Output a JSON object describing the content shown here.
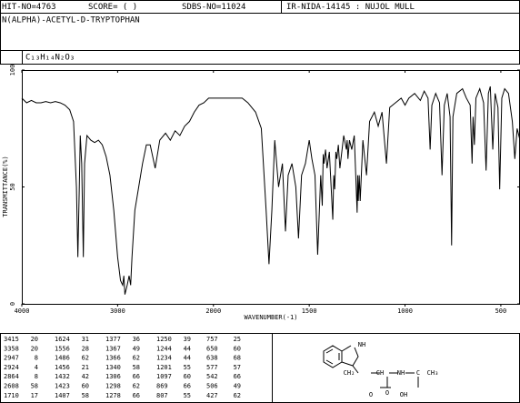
{
  "header": {
    "hit_no": "HIT-NO=4763",
    "score": "SCORE=  (   )",
    "sdbs_no": "SDBS-NO=11024",
    "method": "IR-NIDA-14145 : NUJOL MULL",
    "compound": "N(ALPHA)-ACETYL-D-TRYPTOPHAN",
    "formula": "C₁₃H₁₄N₂O₃"
  },
  "chart_data": {
    "type": "line",
    "ylabel": "TRANSMITTANCE(%)",
    "xlabel": "WAVENUMBER(-1)",
    "xlim": [
      4000,
      400
    ],
    "x_break": 2000,
    "xticks": [
      4000,
      3000,
      2000,
      1500,
      1000,
      500
    ],
    "ylim": [
      0,
      100
    ],
    "yticks": [
      0,
      50,
      100
    ],
    "series": [
      {
        "color": "#000000",
        "x": [
          4000,
          3950,
          3900,
          3850,
          3800,
          3750,
          3700,
          3650,
          3600,
          3550,
          3500,
          3460,
          3430,
          3415,
          3400,
          3390,
          3375,
          3358,
          3345,
          3320,
          3280,
          3240,
          3200,
          3160,
          3120,
          3080,
          3040,
          3000,
          2970,
          2947,
          2935,
          2924,
          2900,
          2880,
          2864,
          2850,
          2820,
          2780,
          2740,
          2700,
          2660,
          2608,
          2560,
          2500,
          2450,
          2400,
          2350,
          2300,
          2250,
          2200,
          2150,
          2100,
          2050,
          2000,
          1950,
          1900,
          1850,
          1820,
          1780,
          1750,
          1725,
          1710,
          1695,
          1680,
          1660,
          1640,
          1624,
          1610,
          1590,
          1570,
          1556,
          1540,
          1520,
          1500,
          1486,
          1470,
          1456,
          1440,
          1432,
          1427,
          1423,
          1415,
          1407,
          1395,
          1377,
          1372,
          1367,
          1361,
          1356,
          1348,
          1340,
          1320,
          1306,
          1302,
          1298,
          1290,
          1278,
          1265,
          1250,
          1247,
          1244,
          1239,
          1234,
          1220,
          1201,
          1185,
          1160,
          1140,
          1120,
          1097,
          1080,
          1050,
          1020,
          1000,
          980,
          950,
          920,
          900,
          880,
          869,
          860,
          840,
          820,
          807,
          795,
          780,
          765,
          757,
          750,
          730,
          700,
          680,
          660,
          650,
          645,
          638,
          630,
          610,
          590,
          577,
          565,
          555,
          542,
          530,
          515,
          506,
          495,
          480,
          460,
          440,
          427,
          415,
          400
        ],
        "values": [
          88,
          86,
          87,
          86,
          86,
          86.5,
          86,
          86.5,
          86,
          85,
          83,
          78,
          50,
          20,
          50,
          72,
          60,
          20,
          60,
          72,
          70,
          69,
          70,
          68,
          63,
          55,
          40,
          20,
          10,
          8,
          12,
          4,
          8,
          12,
          8,
          20,
          40,
          50,
          60,
          68,
          68,
          58,
          70,
          73,
          70,
          74,
          72,
          76,
          78,
          82,
          85,
          86,
          88,
          88,
          88,
          88,
          88,
          86,
          82,
          75,
          40,
          17,
          40,
          70,
          50,
          60,
          31,
          55,
          60,
          50,
          28,
          55,
          60,
          70,
          62,
          55,
          21,
          55,
          42,
          64,
          60,
          66,
          58,
          65,
          36,
          55,
          49,
          65,
          62,
          68,
          58,
          72,
          66,
          70,
          62,
          70,
          66,
          72,
          39,
          55,
          44,
          55,
          44,
          70,
          55,
          78,
          82,
          76,
          82,
          60,
          84,
          86,
          88,
          85,
          88,
          90,
          87,
          91,
          88,
          66,
          85,
          90,
          86,
          55,
          85,
          90,
          80,
          25,
          80,
          90,
          92,
          88,
          85,
          60,
          80,
          68,
          88,
          92,
          86,
          57,
          90,
          93,
          66,
          90,
          84,
          49,
          88,
          92,
          90,
          78,
          62,
          75,
          70
        ]
      }
    ]
  },
  "peaks": [
    [
      3415,
      20
    ],
    [
      3358,
      20
    ],
    [
      2947,
      8
    ],
    [
      2924,
      4
    ],
    [
      2864,
      8
    ],
    [
      2608,
      58
    ],
    [
      1710,
      17
    ],
    [
      1624,
      31
    ],
    [
      1556,
      28
    ],
    [
      1486,
      62
    ],
    [
      1456,
      21
    ],
    [
      1432,
      42
    ],
    [
      1423,
      60
    ],
    [
      1407,
      58
    ],
    [
      1377,
      36
    ],
    [
      1367,
      49
    ],
    [
      1366,
      62
    ],
    [
      1340,
      58
    ],
    [
      1306,
      66
    ],
    [
      1298,
      62
    ],
    [
      1278,
      66
    ],
    [
      1250,
      39
    ],
    [
      1244,
      44
    ],
    [
      1234,
      44
    ],
    [
      1201,
      55
    ],
    [
      1097,
      60
    ],
    [
      869,
      66
    ],
    [
      807,
      55
    ],
    [
      757,
      25
    ],
    [
      650,
      60
    ],
    [
      638,
      68
    ],
    [
      577,
      57
    ],
    [
      542,
      66
    ],
    [
      506,
      49
    ],
    [
      427,
      62
    ]
  ],
  "structure": {
    "labels": [
      "NH",
      "CH₂",
      "CH",
      "NH",
      "C",
      "CH₃",
      "O",
      "O",
      "OH"
    ]
  }
}
